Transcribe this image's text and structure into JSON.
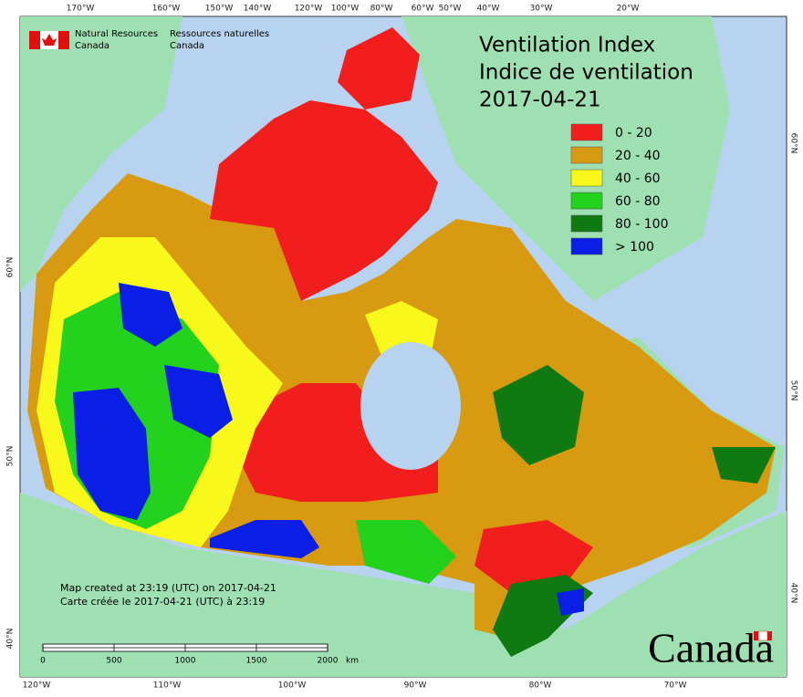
{
  "logo": {
    "en_line1": "Natural Resources",
    "en_line2": "Canada",
    "fr_line1": "Ressources naturelles",
    "fr_line2": "Canada"
  },
  "title": {
    "line1": "Ventilation Index",
    "line2": "Indice de ventilation",
    "date": "2017-04-21"
  },
  "legend": [
    {
      "label": "0 - 20",
      "color": "#f21d1d"
    },
    {
      "label": "20 - 40",
      "color": "#d89a10"
    },
    {
      "label": "40 - 60",
      "color": "#f8f81a"
    },
    {
      "label": "60 - 80",
      "color": "#22d21d"
    },
    {
      "label": "80 - 100",
      "color": "#0f7a12"
    },
    {
      "label": "> 100",
      "color": "#0a1ee6"
    }
  ],
  "graticule": {
    "top": [
      "170°W",
      "160°W",
      "150°W",
      "140°W",
      "120°W",
      "100°W",
      "80°W",
      "60°W",
      "50°W",
      "40°W",
      "30°W",
      "20°W"
    ],
    "bottom": [
      "120°W",
      "110°W",
      "100°W",
      "90°W",
      "80°W",
      "70°W"
    ],
    "left": [
      "60°N",
      "50°N",
      "40°N"
    ],
    "right": [
      "60°N",
      "50°N",
      "40°N"
    ]
  },
  "footnote": {
    "line1": "Map created at 23:19 (UTC) on 2017-04-21",
    "line2": "Carte créée le 2017-04-21 (UTC) à 23:19"
  },
  "scale_bar": {
    "labels": [
      "0",
      "500",
      "1000",
      "1500",
      "2000"
    ],
    "unit": "km"
  },
  "wordmark": "Canada"
}
